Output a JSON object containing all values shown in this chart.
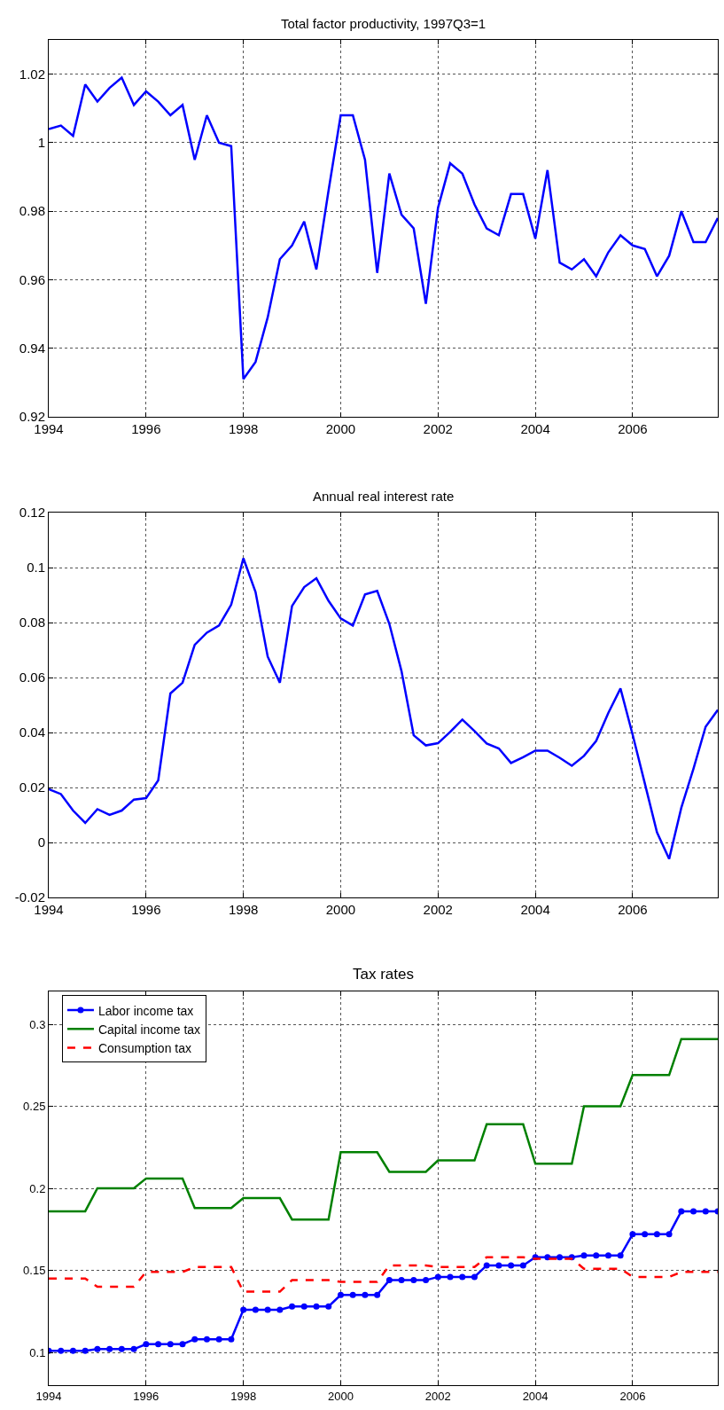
{
  "chart_data": [
    {
      "type": "line",
      "title": "Total factor productivity, 1997Q3=1",
      "x": [
        1994,
        1994.25,
        1994.5,
        1994.75,
        1995,
        1995.25,
        1995.5,
        1995.75,
        1996,
        1996.25,
        1996.5,
        1996.75,
        1997,
        1997.25,
        1997.5,
        1997.75,
        1998,
        1998.25,
        1998.5,
        1998.75,
        1999,
        1999.25,
        1999.5,
        1999.75,
        2000,
        2000.25,
        2000.5,
        2000.75,
        2001,
        2001.25,
        2001.5,
        2001.75,
        2002,
        2002.25,
        2002.5,
        2002.75,
        2003,
        2003.25,
        2003.5,
        2003.75,
        2004,
        2004.25,
        2004.5,
        2004.75,
        2005,
        2005.25,
        2005.5,
        2005.75,
        2006,
        2006.25,
        2006.5,
        2006.75,
        2007,
        2007.25,
        2007.5,
        2007.75
      ],
      "series": [
        {
          "color": "#0000ff",
          "values": [
            1.004,
            1.005,
            1.002,
            1.017,
            1.012,
            1.016,
            1.019,
            1.011,
            1.015,
            1.012,
            1.008,
            1.011,
            0.995,
            1.008,
            1.0,
            0.999,
            0.931,
            0.936,
            0.949,
            0.966,
            0.97,
            0.977,
            0.963,
            0.986,
            1.008,
            1.008,
            0.995,
            0.962,
            0.991,
            0.979,
            0.975,
            0.953,
            0.981,
            0.994,
            0.991,
            0.982,
            0.975,
            0.973,
            0.985,
            0.985,
            0.972,
            0.992,
            0.965,
            0.963,
            0.966,
            0.961,
            0.968,
            0.973,
            0.97,
            0.969,
            0.961,
            0.967,
            0.98,
            0.971,
            0.971,
            0.978
          ]
        }
      ],
      "xlim": [
        1994,
        2007.75
      ],
      "xticks": [
        1994,
        1996,
        1998,
        2000,
        2002,
        2004,
        2006
      ],
      "ylim": [
        0.92,
        1.03
      ],
      "yticks": [
        0.92,
        0.94,
        0.96,
        0.98,
        1,
        1.02
      ],
      "grid": true,
      "legend": false,
      "marker": "none",
      "line_style": "solid"
    },
    {
      "type": "line",
      "title": "Annual real interest rate",
      "x": [
        1994,
        1994.25,
        1994.5,
        1994.75,
        1995,
        1995.25,
        1995.5,
        1995.75,
        1996,
        1996.25,
        1996.5,
        1996.75,
        1997,
        1997.25,
        1997.5,
        1997.75,
        1998,
        1998.25,
        1998.5,
        1998.75,
        1999,
        1999.25,
        1999.5,
        1999.75,
        2000,
        2000.25,
        2000.5,
        2000.75,
        2001,
        2001.25,
        2001.5,
        2001.75,
        2002,
        2002.25,
        2002.5,
        2002.75,
        2003,
        2003.25,
        2003.5,
        2003.75,
        2004,
        2004.25,
        2004.5,
        2004.75,
        2005,
        2005.25,
        2005.5,
        2005.75,
        2006,
        2006.25,
        2006.5,
        2006.75,
        2007,
        2007.25,
        2007.5,
        2007.75
      ],
      "series": [
        {
          "color": "#0000ff",
          "values": [
            0.0194,
            0.0176,
            0.0116,
            0.0071,
            0.0121,
            0.01,
            0.0116,
            0.0156,
            0.0161,
            0.0226,
            0.0542,
            0.0581,
            0.0719,
            0.0763,
            0.0789,
            0.0865,
            0.1034,
            0.0911,
            0.0676,
            0.0581,
            0.086,
            0.0929,
            0.0961,
            0.0879,
            0.0815,
            0.0789,
            0.0902,
            0.0915,
            0.0795,
            0.0623,
            0.039,
            0.0353,
            0.0361,
            0.0402,
            0.0447,
            0.0405,
            0.036,
            0.0342,
            0.0289,
            0.031,
            0.0334,
            0.0334,
            0.0308,
            0.0279,
            0.0315,
            0.0369,
            0.0471,
            0.056,
            0.0392,
            0.0215,
            0.0037,
            -0.006,
            0.0126,
            0.0268,
            0.0421,
            0.0482
          ]
        }
      ],
      "xlim": [
        1994,
        2007.75
      ],
      "xticks": [
        1994,
        1996,
        1998,
        2000,
        2002,
        2004,
        2006
      ],
      "ylim": [
        -0.02,
        0.12
      ],
      "yticks": [
        -0.02,
        0,
        0.02,
        0.04,
        0.06,
        0.08,
        0.1,
        0.12
      ],
      "grid": true,
      "legend": false,
      "marker": "none",
      "line_style": "solid"
    },
    {
      "type": "line",
      "title": "Tax rates",
      "x": [
        1994,
        1994.25,
        1994.5,
        1994.75,
        1995,
        1995.25,
        1995.5,
        1995.75,
        1996,
        1996.25,
        1996.5,
        1996.75,
        1997,
        1997.25,
        1997.5,
        1997.75,
        1998,
        1998.25,
        1998.5,
        1998.75,
        1999,
        1999.25,
        1999.5,
        1999.75,
        2000,
        2000.25,
        2000.5,
        2000.75,
        2001,
        2001.25,
        2001.5,
        2001.75,
        2002,
        2002.25,
        2002.5,
        2002.75,
        2003,
        2003.25,
        2003.5,
        2003.75,
        2004,
        2004.25,
        2004.5,
        2004.75,
        2005,
        2005.25,
        2005.5,
        2005.75,
        2006,
        2006.25,
        2006.5,
        2006.75,
        2007,
        2007.25,
        2007.5,
        2007.75
      ],
      "series": [
        {
          "name": "Labor income tax",
          "color": "#0000ff",
          "marker": "circle",
          "line_style": "solid",
          "values": [
            0.101,
            0.101,
            0.101,
            0.101,
            0.102,
            0.102,
            0.102,
            0.102,
            0.105,
            0.105,
            0.105,
            0.105,
            0.108,
            0.108,
            0.108,
            0.108,
            0.126,
            0.126,
            0.126,
            0.126,
            0.128,
            0.128,
            0.128,
            0.128,
            0.135,
            0.135,
            0.135,
            0.135,
            0.144,
            0.144,
            0.144,
            0.144,
            0.146,
            0.146,
            0.146,
            0.146,
            0.153,
            0.153,
            0.153,
            0.153,
            0.158,
            0.158,
            0.158,
            0.158,
            0.159,
            0.159,
            0.159,
            0.159,
            0.172,
            0.172,
            0.172,
            0.172,
            0.186,
            0.186,
            0.186,
            0.186
          ]
        },
        {
          "name": "Capital income tax",
          "color": "#008000",
          "marker": "none",
          "line_style": "solid",
          "values": [
            0.186,
            0.186,
            0.186,
            0.186,
            0.2,
            0.2,
            0.2,
            0.2,
            0.206,
            0.206,
            0.206,
            0.206,
            0.188,
            0.188,
            0.188,
            0.188,
            0.194,
            0.194,
            0.194,
            0.194,
            0.181,
            0.181,
            0.181,
            0.181,
            0.222,
            0.222,
            0.222,
            0.222,
            0.21,
            0.21,
            0.21,
            0.21,
            0.217,
            0.217,
            0.217,
            0.217,
            0.239,
            0.239,
            0.239,
            0.239,
            0.215,
            0.215,
            0.215,
            0.215,
            0.25,
            0.25,
            0.25,
            0.25,
            0.269,
            0.269,
            0.269,
            0.269,
            0.291,
            0.291,
            0.291,
            0.291
          ]
        },
        {
          "name": "Consumption tax",
          "color": "#ff0000",
          "marker": "none",
          "line_style": "dashed",
          "values": [
            0.145,
            0.145,
            0.145,
            0.145,
            0.14,
            0.14,
            0.14,
            0.14,
            0.149,
            0.149,
            0.149,
            0.149,
            0.152,
            0.152,
            0.152,
            0.152,
            0.137,
            0.137,
            0.137,
            0.137,
            0.144,
            0.144,
            0.144,
            0.144,
            0.143,
            0.143,
            0.143,
            0.143,
            0.153,
            0.153,
            0.153,
            0.153,
            0.152,
            0.152,
            0.152,
            0.152,
            0.158,
            0.158,
            0.158,
            0.158,
            0.157,
            0.157,
            0.157,
            0.157,
            0.151,
            0.151,
            0.151,
            0.151,
            0.146,
            0.146,
            0.146,
            0.146,
            0.149,
            0.149,
            0.149,
            0.149
          ]
        }
      ],
      "xlim": [
        1994,
        2007.75
      ],
      "xticks": [
        1994,
        1996,
        1998,
        2000,
        2002,
        2004,
        2006
      ],
      "ylim": [
        0.08,
        0.32
      ],
      "yticks": [
        0.1,
        0.15,
        0.2,
        0.25,
        0.3
      ],
      "grid": true,
      "legend": "top left"
    }
  ]
}
